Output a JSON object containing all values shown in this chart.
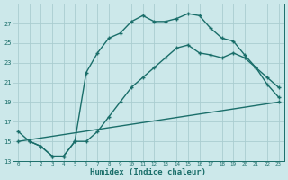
{
  "xlabel": "Humidex (Indice chaleur)",
  "bg_color": "#cce8ea",
  "grid_color": "#aacdd0",
  "line_color": "#1a6e6a",
  "line1_x": [
    1,
    2,
    3,
    4,
    5,
    6,
    7,
    8,
    9,
    10,
    11,
    12,
    13,
    14,
    15,
    16,
    17,
    18,
    19,
    20,
    21,
    22,
    23
  ],
  "line1_y": [
    15,
    14.5,
    13.5,
    13.5,
    15,
    22,
    24,
    25.5,
    26,
    27.2,
    27.8,
    27.2,
    27.2,
    27.5,
    28.0,
    27.8,
    26.5,
    25.5,
    25.2,
    23.8,
    22.5,
    20.8,
    19.5
  ],
  "line2_x": [
    0,
    1,
    2,
    3,
    4,
    5,
    6,
    7,
    8,
    9,
    10,
    11,
    12,
    13,
    14,
    15,
    16,
    17,
    18,
    19,
    20,
    21,
    22,
    23
  ],
  "line2_y": [
    16,
    15,
    14.5,
    13.5,
    13.5,
    15,
    15,
    16,
    17.5,
    19,
    20.5,
    21.5,
    22.5,
    23.5,
    24.5,
    24.8,
    24,
    23.8,
    23.5,
    24,
    23.5,
    22.5,
    21.5,
    20.5
  ],
  "line3_x": [
    0,
    23
  ],
  "line3_y": [
    15,
    19
  ],
  "xlim": [
    -0.5,
    23.5
  ],
  "ylim": [
    13,
    29
  ],
  "yticks": [
    13,
    15,
    17,
    19,
    21,
    23,
    25,
    27
  ],
  "xticks": [
    0,
    1,
    2,
    3,
    4,
    5,
    6,
    7,
    8,
    9,
    10,
    11,
    12,
    13,
    14,
    15,
    16,
    17,
    18,
    19,
    20,
    21,
    22,
    23
  ],
  "markersize": 3.5,
  "linewidth": 1.0
}
